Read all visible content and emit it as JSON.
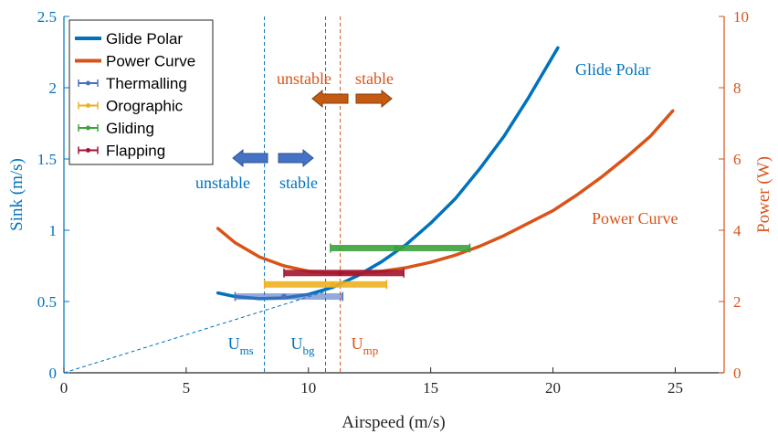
{
  "chart_data": {
    "type": "line",
    "xlabel": "Airspeed (m/s)",
    "ylabel_left": "Sink (m/s)",
    "ylabel_right": "Power (W)",
    "xlim": [
      0,
      27
    ],
    "ylim_left": [
      0,
      2.5
    ],
    "ylim_right": [
      0,
      10
    ],
    "x_ticks": [
      "0",
      "5",
      "10",
      "15",
      "20",
      "25"
    ],
    "y_left_ticks": [
      "0",
      "0.5",
      "1",
      "1.5",
      "2",
      "2.5"
    ],
    "y_right_ticks": [
      "0",
      "2",
      "4",
      "6",
      "8",
      "10"
    ],
    "grid": false,
    "legend_position": "top-left",
    "colors": {
      "glide": "#0072BD",
      "power": "#D95319",
      "thermalling": "#4A6FC2",
      "orographic": "#EDB120",
      "gliding": "#3BA33B",
      "flapping": "#A2142F"
    },
    "series": [
      {
        "name": "Glide Polar",
        "axis": "left",
        "x": [
          6.3,
          7,
          8,
          9,
          10,
          11,
          12,
          13,
          14,
          15,
          16,
          17,
          18,
          19,
          20.2
        ],
        "y": [
          0.56,
          0.535,
          0.52,
          0.525,
          0.55,
          0.6,
          0.68,
          0.78,
          0.9,
          1.05,
          1.22,
          1.43,
          1.66,
          1.93,
          2.28
        ]
      },
      {
        "name": "Power Curve",
        "axis": "right",
        "x": [
          6.3,
          7,
          8,
          9,
          10,
          11,
          12,
          13,
          14,
          15,
          16,
          17,
          18,
          19,
          20,
          21,
          22,
          23,
          24,
          24.9
        ],
        "y": [
          4.05,
          3.65,
          3.25,
          3.0,
          2.85,
          2.8,
          2.8,
          2.85,
          2.95,
          3.1,
          3.3,
          3.55,
          3.85,
          4.2,
          4.55,
          5.0,
          5.5,
          6.05,
          6.65,
          7.35
        ]
      }
    ],
    "ranges": [
      {
        "name": "Thermalling",
        "sink": 0.535,
        "x_min": 7.0,
        "x_max": 11.4,
        "marker_x": 9.0
      },
      {
        "name": "Orographic",
        "sink": 0.62,
        "x_min": 8.2,
        "x_max": 13.2,
        "marker_x": 11.0
      },
      {
        "name": "Gliding",
        "sink": 0.875,
        "x_min": 10.9,
        "x_max": 16.6,
        "marker_x": 13.6
      },
      {
        "name": "Flapping",
        "sink": 0.7,
        "x_min": 9.0,
        "x_max": 13.9,
        "marker_x": 11.3
      }
    ],
    "vlines": [
      {
        "label_main": "U",
        "label_sub": "ms",
        "x": 8.2,
        "color_key": "glide"
      },
      {
        "label_main": "U",
        "label_sub": "bg",
        "x": 10.7,
        "color_key": "glide"
      },
      {
        "label_main": "U",
        "label_sub": "mp",
        "x": 11.3,
        "color_key": "power"
      }
    ],
    "annotations": {
      "glide_polar_label": "Glide Polar",
      "power_curve_label": "Power Curve",
      "unstable_blue": "unstable",
      "stable_blue": "stable",
      "unstable_orange": "unstable",
      "stable_orange": "stable"
    },
    "legend": [
      "Glide Polar",
      "Power Curve",
      "Thermalling",
      "Orographic",
      "Gliding",
      "Flapping"
    ]
  }
}
